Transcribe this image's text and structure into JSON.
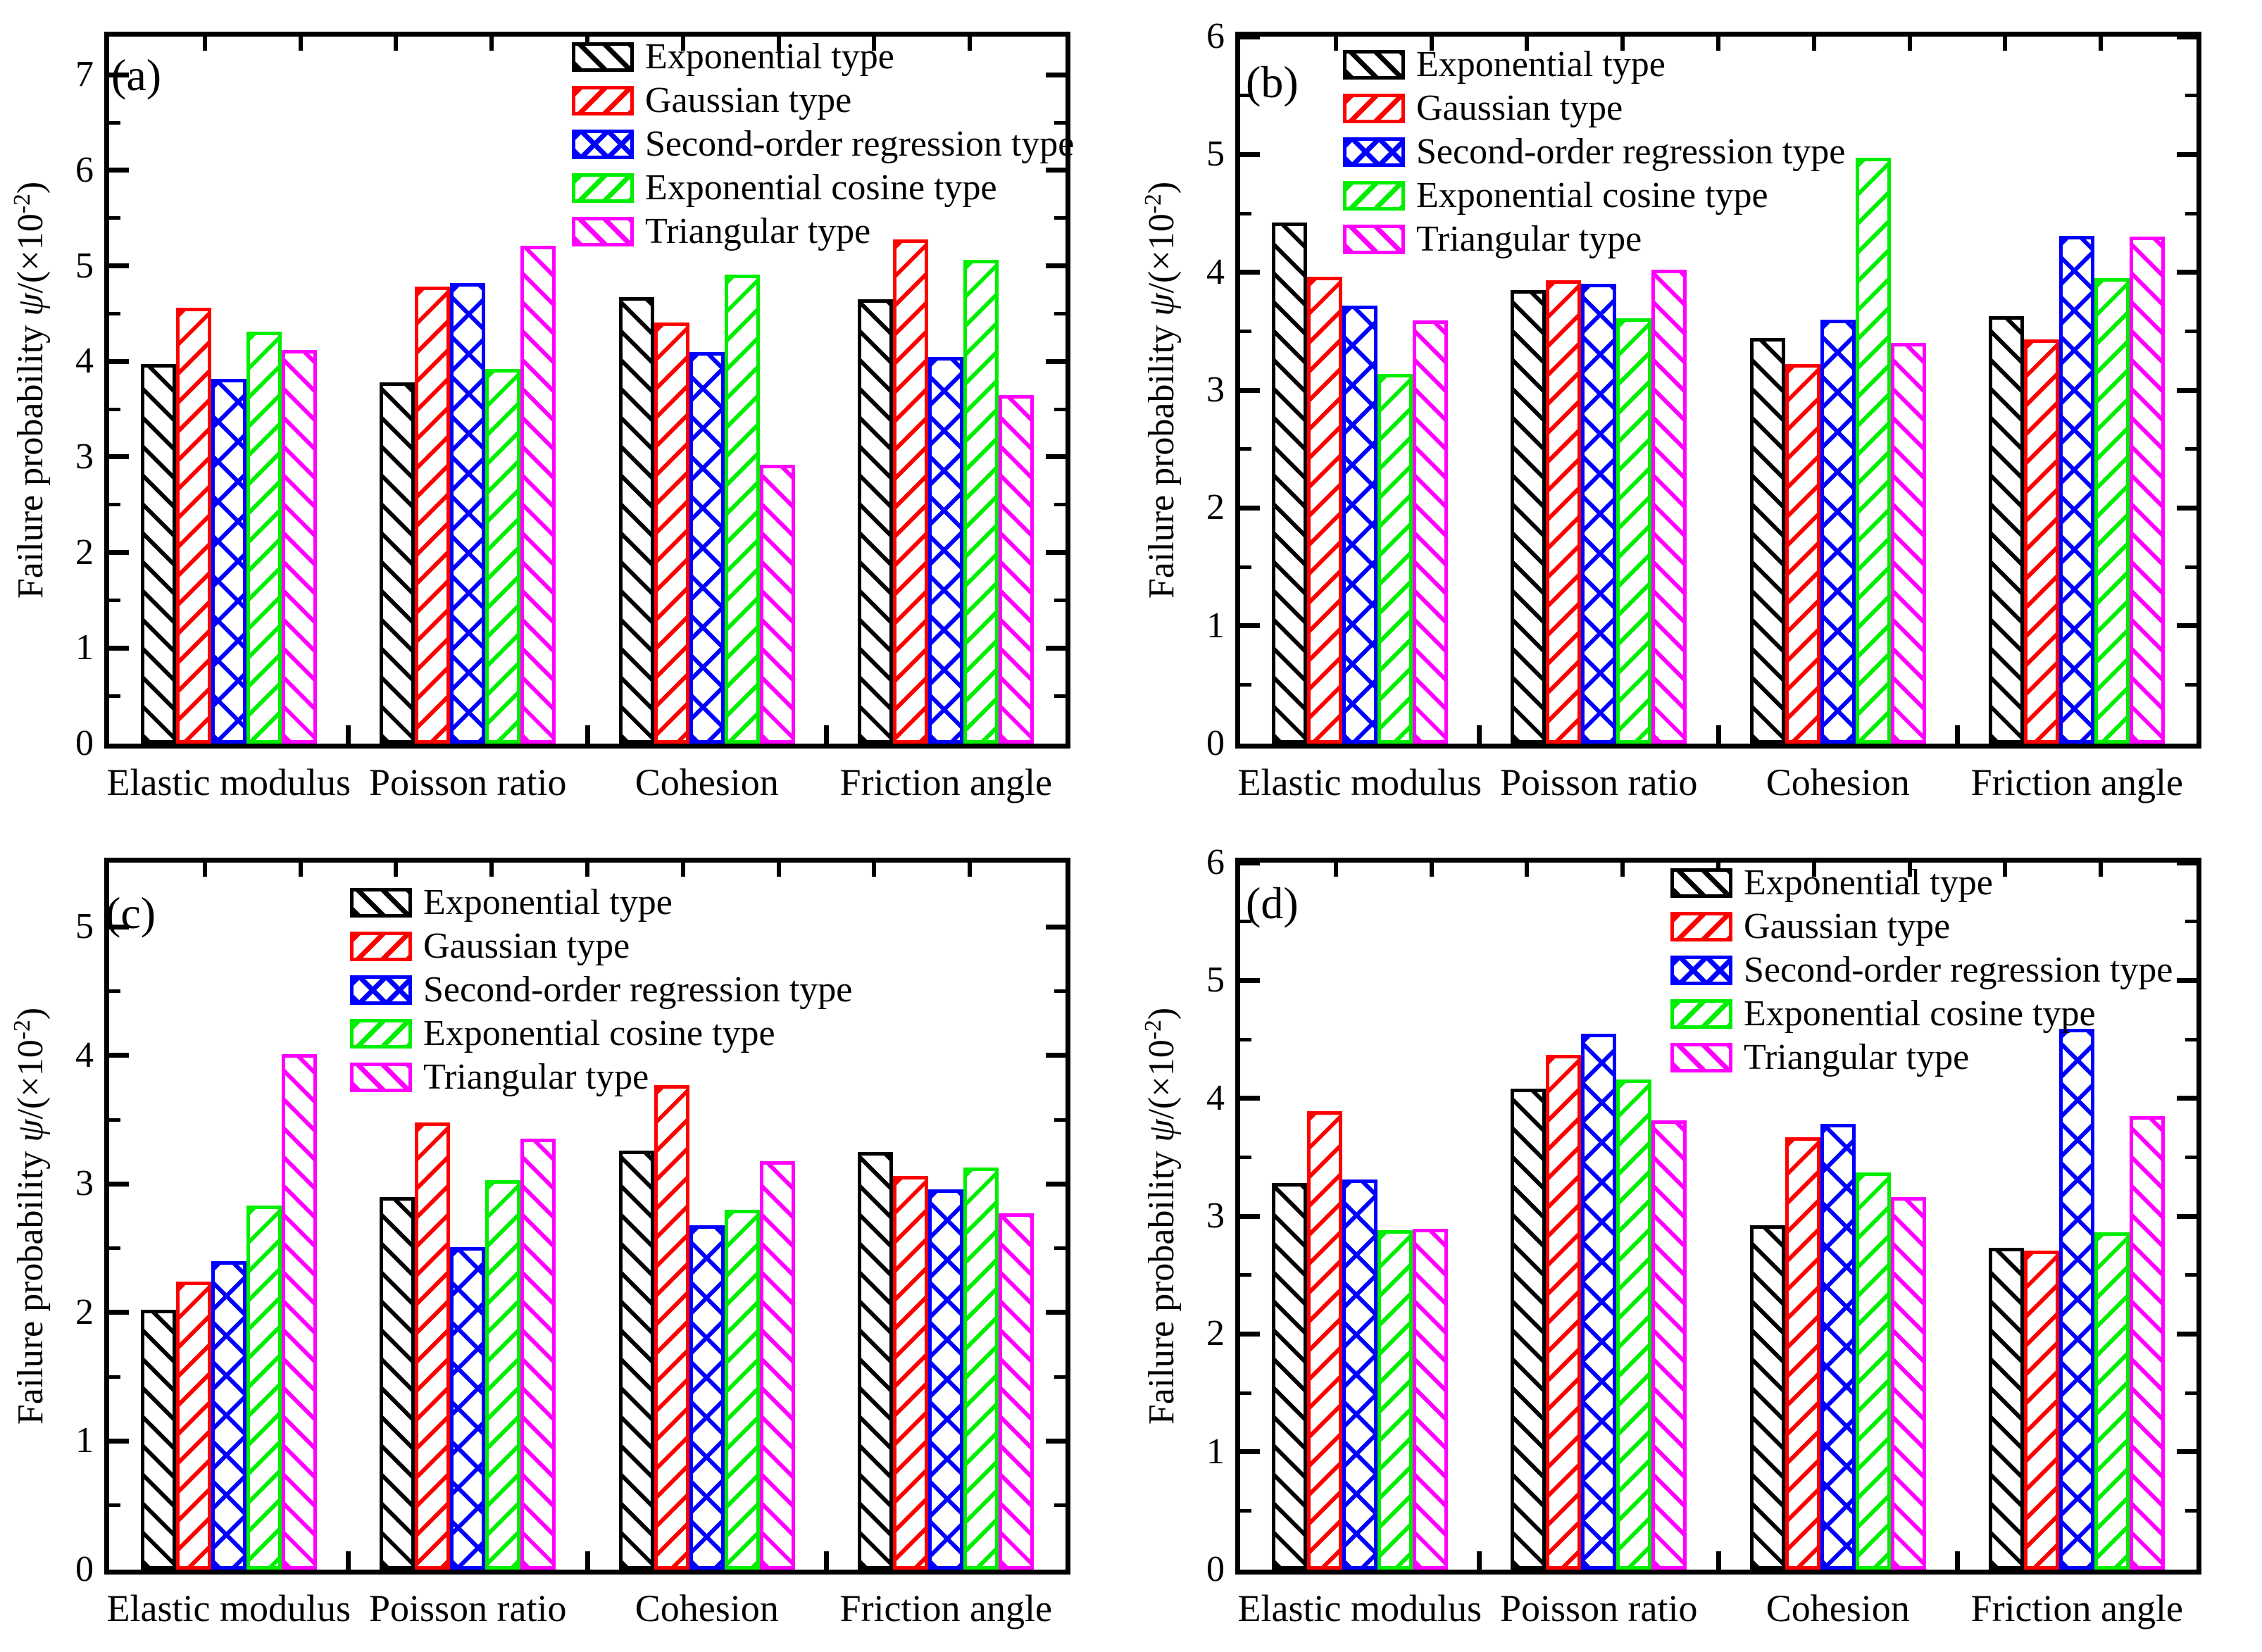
{
  "figure": {
    "background": "#ffffff",
    "axis_color": "#000000",
    "ylabel_parts": {
      "prefix": "Failure probability ",
      "symbol": "ψ",
      "mid": "/(×10",
      "exponent": "-2",
      "suffix": ")"
    },
    "ylabel_text": "Failure probability ψ/(×10-2)",
    "categories": [
      "Elastic modulus",
      "Poisson ratio",
      "Cohesion",
      "Friction angle"
    ],
    "series_styles": [
      {
        "name": "Exponential type",
        "color": "#000000",
        "hatch": "back"
      },
      {
        "name": "Gaussian type",
        "color": "#ff0000",
        "hatch": "fwd"
      },
      {
        "name": "Second-order regression type",
        "color": "#0000ff",
        "hatch": "cross"
      },
      {
        "name": "Exponential cosine type",
        "color": "#00ee00",
        "hatch": "fwd"
      },
      {
        "name": "Triangular type",
        "color": "#ff00ff",
        "hatch": "back"
      }
    ]
  },
  "chart_data": [
    {
      "type": "bar",
      "panel_label": "(a)",
      "title": "",
      "xlabel": "",
      "ylabel": "Failure probability ψ/(×10-2)",
      "categories": [
        "Elastic modulus",
        "Poisson ratio",
        "Cohesion",
        "Friction angle"
      ],
      "series": [
        {
          "name": "Exponential type",
          "values": [
            3.97,
            3.78,
            4.67,
            4.65
          ]
        },
        {
          "name": "Gaussian type",
          "values": [
            4.56,
            4.78,
            4.41,
            5.28
          ]
        },
        {
          "name": "Second-order regression type",
          "values": [
            3.82,
            4.82,
            4.1,
            4.05
          ]
        },
        {
          "name": "Exponential cosine type",
          "values": [
            4.31,
            3.92,
            4.91,
            5.06
          ]
        },
        {
          "name": "Triangular type",
          "values": [
            4.12,
            5.21,
            2.92,
            3.65
          ]
        }
      ],
      "ylim": [
        0,
        7.4
      ],
      "yticks": [
        0,
        1,
        2,
        3,
        4,
        5,
        6,
        7
      ],
      "grid": false,
      "legend_position": "inside-top-center-right",
      "legend_xy": [
        812,
        60
      ],
      "letter_xy": [
        158,
        75
      ]
    },
    {
      "type": "bar",
      "panel_label": "(b)",
      "title": "",
      "xlabel": "",
      "ylabel": "Failure probability ψ/(×10-2)",
      "categories": [
        "Elastic modulus",
        "Poisson ratio",
        "Cohesion",
        "Friction angle"
      ],
      "series": [
        {
          "name": "Exponential type",
          "values": [
            4.42,
            3.85,
            3.44,
            3.63
          ]
        },
        {
          "name": "Gaussian type",
          "values": [
            3.96,
            3.93,
            3.22,
            3.43
          ]
        },
        {
          "name": "Second-order regression type",
          "values": [
            3.72,
            3.9,
            3.6,
            4.31
          ]
        },
        {
          "name": "Exponential cosine type",
          "values": [
            3.14,
            3.61,
            4.97,
            3.95
          ]
        },
        {
          "name": "Triangular type",
          "values": [
            3.59,
            4.02,
            3.4,
            4.3
          ]
        }
      ],
      "ylim": [
        0,
        6
      ],
      "yticks": [
        0,
        1,
        2,
        3,
        4,
        5,
        6
      ],
      "grid": false,
      "legend_position": "inside-top-left",
      "legend_xy": [
        301,
        71
      ],
      "letter_xy": [
        163,
        85
      ]
    },
    {
      "type": "bar",
      "panel_label": "(c)",
      "title": "",
      "xlabel": "",
      "ylabel": "Failure probability ψ/(×10-2)",
      "categories": [
        "Elastic modulus",
        "Poisson ratio",
        "Cohesion",
        "Friction angle"
      ],
      "series": [
        {
          "name": "Exponential type",
          "values": [
            2.02,
            2.9,
            3.26,
            3.25
          ]
        },
        {
          "name": "Gaussian type",
          "values": [
            2.24,
            3.48,
            3.77,
            3.06
          ]
        },
        {
          "name": "Second-order regression type",
          "values": [
            2.4,
            2.51,
            2.68,
            2.96
          ]
        },
        {
          "name": "Exponential cosine type",
          "values": [
            2.83,
            3.03,
            2.8,
            3.13
          ]
        },
        {
          "name": "Triangular type",
          "values": [
            4.01,
            3.35,
            3.18,
            2.77
          ]
        }
      ],
      "ylim": [
        0,
        5.5
      ],
      "yticks": [
        0,
        1,
        2,
        3,
        4,
        5
      ],
      "grid": false,
      "legend_position": "inside-top-center-left",
      "legend_xy": [
        497,
        88
      ],
      "letter_xy": [
        150,
        92
      ]
    },
    {
      "type": "bar",
      "panel_label": "(d)",
      "title": "",
      "xlabel": "",
      "ylabel": "Failure probability ψ/(×10-2)",
      "categories": [
        "Elastic modulus",
        "Poisson ratio",
        "Cohesion",
        "Friction angle"
      ],
      "series": [
        {
          "name": "Exponential type",
          "values": [
            3.28,
            4.08,
            2.92,
            2.73
          ]
        },
        {
          "name": "Gaussian type",
          "values": [
            3.89,
            4.37,
            3.67,
            2.71
          ]
        },
        {
          "name": "Second-order regression type",
          "values": [
            3.31,
            4.55,
            3.78,
            4.59
          ]
        },
        {
          "name": "Exponential cosine type",
          "values": [
            2.88,
            4.16,
            3.37,
            2.86
          ]
        },
        {
          "name": "Triangular type",
          "values": [
            2.89,
            3.81,
            3.16,
            3.85
          ]
        }
      ],
      "ylim": [
        0,
        6
      ],
      "yticks": [
        0,
        1,
        2,
        3,
        4,
        5,
        6
      ],
      "grid": false,
      "legend_position": "inside-top-center-right",
      "legend_xy": [
        766,
        60
      ],
      "letter_xy": [
        163,
        78
      ]
    }
  ]
}
